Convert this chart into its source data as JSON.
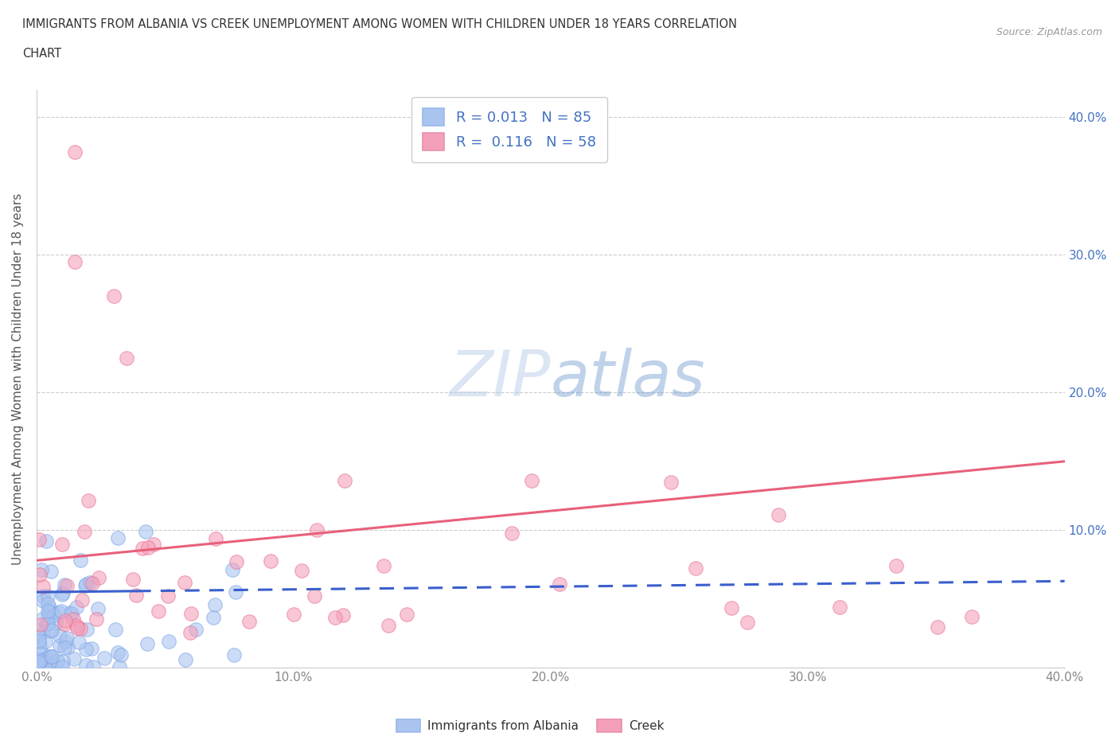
{
  "title_line1": "IMMIGRANTS FROM ALBANIA VS CREEK UNEMPLOYMENT AMONG WOMEN WITH CHILDREN UNDER 18 YEARS CORRELATION",
  "title_line2": "CHART",
  "source_text": "Source: ZipAtlas.com",
  "ylabel": "Unemployment Among Women with Children Under 18 years",
  "xlim": [
    0.0,
    0.4
  ],
  "ylim": [
    0.0,
    0.42
  ],
  "yticks": [
    0.0,
    0.1,
    0.2,
    0.3,
    0.4
  ],
  "xticks": [
    0.0,
    0.1,
    0.2,
    0.3,
    0.4
  ],
  "ytick_labels_right": [
    "",
    "10.0%",
    "20.0%",
    "30.0%",
    "40.0%"
  ],
  "xtick_labels": [
    "0.0%",
    "10.0%",
    "20.0%",
    "30.0%",
    "40.0%"
  ],
  "albania_color": "#aac4f0",
  "creek_color": "#f4a0ba",
  "albania_line_color": "#3a5fcd",
  "creek_line_color": "#e8607a",
  "albania_R": 0.013,
  "albania_N": 85,
  "creek_R": 0.116,
  "creek_N": 58,
  "grid_color": "#cccccc",
  "background_color": "#ffffff",
  "title_color": "#333333",
  "axis_label_color": "#555555",
  "tick_color": "#888888",
  "right_tick_color": "#4472c4",
  "watermark_color": "#d0dff5",
  "legend_label_color": "#4472c4"
}
